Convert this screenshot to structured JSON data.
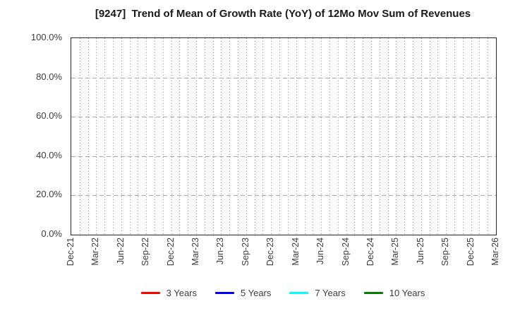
{
  "title": "[9247]  Trend of Mean of Growth Rate (YoY) of 12Mo Mov Sum of Revenues",
  "chart_data": {
    "type": "line",
    "title": "[9247]  Trend of Mean of Growth Rate (YoY) of 12Mo Mov Sum of Revenues",
    "xlabel": "",
    "ylabel": "",
    "ylim": [
      0,
      100
    ],
    "y_tick_values": [
      0,
      20,
      40,
      60,
      80,
      100
    ],
    "y_tick_labels": [
      "0.0%",
      "20.0%",
      "40.0%",
      "60.0%",
      "80.0%",
      "100.0%"
    ],
    "x_tick_labels": [
      "Dec-21",
      "Mar-22",
      "Jun-22",
      "Sep-22",
      "Dec-22",
      "Mar-23",
      "Jun-23",
      "Sep-23",
      "Dec-23",
      "Mar-24",
      "Jun-24",
      "Sep-24",
      "Dec-24",
      "Mar-25",
      "Jun-25",
      "Sep-25",
      "Dec-25",
      "Mar-26"
    ],
    "minor_x_subdivisions": 3,
    "grid": true,
    "horizontal_gridline_values": [
      20,
      40,
      60,
      80
    ],
    "legend_position": "bottom-center",
    "series": [
      {
        "name": "3 Years",
        "color": "#ff0000",
        "values": []
      },
      {
        "name": "5 Years",
        "color": "#0000ff",
        "values": []
      },
      {
        "name": "7 Years",
        "color": "#00ffff",
        "values": []
      },
      {
        "name": "10 Years",
        "color": "#008000",
        "values": []
      }
    ]
  }
}
